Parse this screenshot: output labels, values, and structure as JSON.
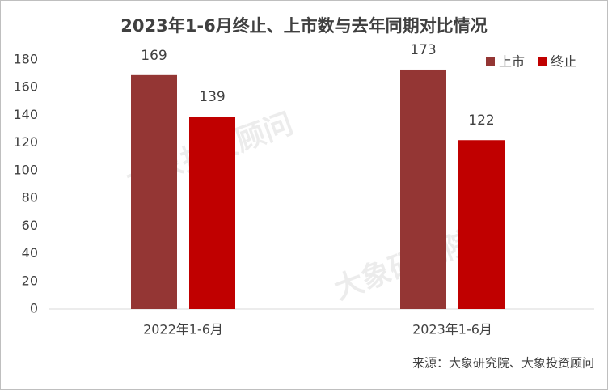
{
  "chart_data": {
    "type": "bar",
    "title": "2023年1-6月终止、上市数与去年同期对比情况",
    "categories": [
      "2022年1-6月",
      "2023年1-6月"
    ],
    "series": [
      {
        "name": "上市",
        "color": "#943634",
        "values": [
          169,
          173
        ]
      },
      {
        "name": "终止",
        "color": "#c00000",
        "values": [
          139,
          122
        ]
      }
    ],
    "ylim": [
      0,
      180
    ],
    "yticks": [
      0,
      20,
      40,
      60,
      80,
      100,
      120,
      140,
      160,
      180
    ],
    "grid": false,
    "legend": "top-right",
    "source": "来源：大象研究院、大象投资顾问",
    "watermarks": [
      "大象投资顾问",
      "大象研究院"
    ]
  }
}
